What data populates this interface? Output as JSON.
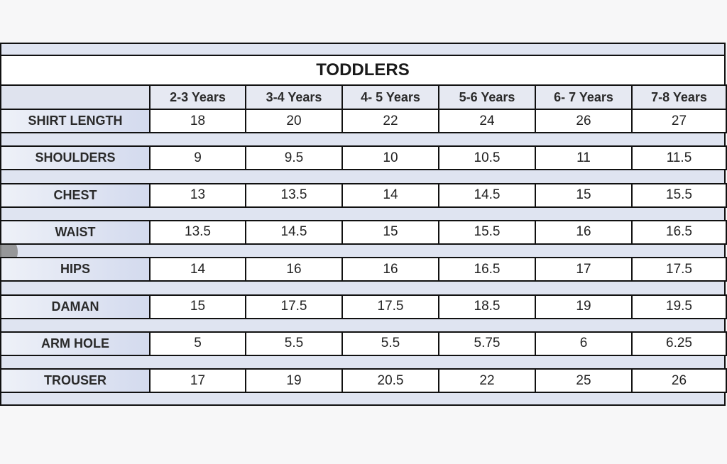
{
  "table": {
    "title": "TODDLERS",
    "columns": [
      "2-3 Years",
      "3-4 Years",
      "4- 5 Years",
      "5-6 Years",
      "6- 7 Years",
      "7-8 Years"
    ],
    "rows": [
      {
        "label": "SHIRT LENGTH",
        "values": [
          18,
          20,
          22,
          24,
          26,
          27
        ]
      },
      {
        "label": "SHOULDERS",
        "values": [
          9,
          9.5,
          10,
          10.5,
          11,
          11.5
        ]
      },
      {
        "label": "CHEST",
        "values": [
          13,
          13.5,
          14,
          14.5,
          15,
          15.5
        ]
      },
      {
        "label": "WAIST",
        "values": [
          13.5,
          14.5,
          15,
          15.5,
          16,
          16.5
        ]
      },
      {
        "label": "HIPS",
        "values": [
          14,
          16,
          16,
          16.5,
          17,
          17.5
        ]
      },
      {
        "label": "DAMAN",
        "values": [
          15,
          17.5,
          17.5,
          18.5,
          19,
          19.5
        ]
      },
      {
        "label": "ARM HOLE",
        "values": [
          5,
          5.5,
          5.5,
          5.75,
          6,
          6.25
        ]
      },
      {
        "label": "TROUSER",
        "values": [
          17,
          19,
          20.5,
          22,
          25,
          26
        ]
      }
    ]
  }
}
